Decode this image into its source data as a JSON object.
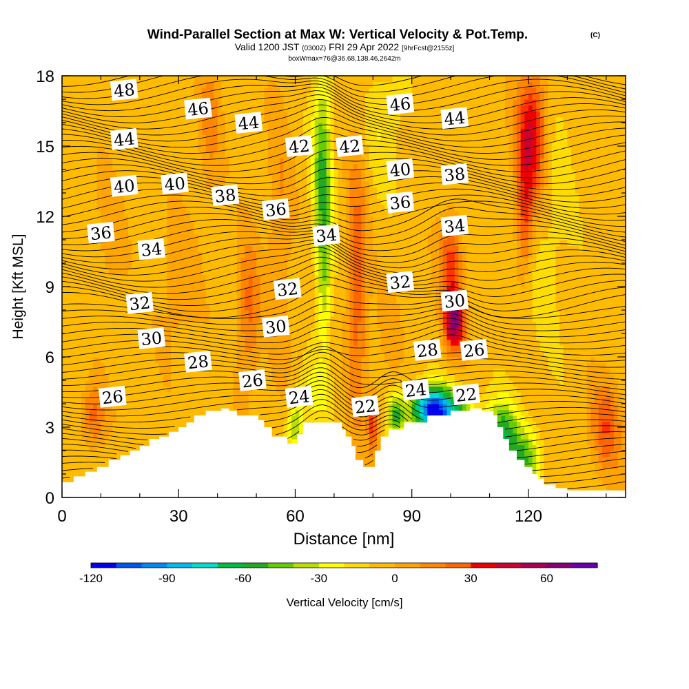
{
  "chart_data": {
    "type": "heatmap",
    "title": "Wind-Parallel Section at Max W: Vertical Velocity & Pot.Temp.",
    "title_mark": "(C)",
    "subtitle": {
      "valid_prefix": "Valid 1200 JST",
      "utc": "(0300Z)",
      "date": "FRI 29 Apr 2022",
      "forecast": "[9hrFcst@2155z]"
    },
    "subtitle2": "boxWmax=76@36.68,138.46,2642m",
    "xlabel": "Distance [nm]",
    "ylabel": "Height [Kft MSL]",
    "xlim": [
      0,
      145
    ],
    "ylim": [
      0,
      18
    ],
    "x_ticks": [
      "0",
      "30",
      "60",
      "90",
      "120"
    ],
    "x_tick_values": [
      0,
      30,
      60,
      90,
      120
    ],
    "y_ticks": [
      "0",
      "3",
      "6",
      "9",
      "12",
      "15",
      "18"
    ],
    "y_tick_values": [
      0,
      3,
      6,
      9,
      12,
      15,
      18
    ],
    "colorbar": {
      "label": "Vertical Velocity [cm/s]",
      "range": [
        -120,
        80
      ],
      "step": 10,
      "tick_labels": [
        "-120",
        "-90",
        "-60",
        "-30",
        "0",
        "30",
        "60"
      ],
      "tick_values": [
        -120,
        -90,
        -60,
        -30,
        0,
        30,
        60
      ],
      "colors": [
        "#0000ee",
        "#0055ee",
        "#0088ee",
        "#00bbee",
        "#00ddcc",
        "#00cc88",
        "#00bb44",
        "#22aa22",
        "#66cc00",
        "#bbdd00",
        "#ffff00",
        "#ffdd00",
        "#ffbb00",
        "#ffa500",
        "#ff8800",
        "#ff6600",
        "#ff3300",
        "#ee0000",
        "#cc0033",
        "#aa0055",
        "#880077",
        "#6600aa"
      ]
    },
    "theta_labels": [
      {
        "text": "48",
        "x": 16,
        "y": 17.4
      },
      {
        "text": "46",
        "x": 35,
        "y": 16.6
      },
      {
        "text": "44",
        "x": 48,
        "y": 16.0
      },
      {
        "text": "42",
        "x": 61,
        "y": 15.0
      },
      {
        "text": "42",
        "x": 74,
        "y": 15.0
      },
      {
        "text": "46",
        "x": 87,
        "y": 16.8
      },
      {
        "text": "44",
        "x": 101,
        "y": 16.2
      },
      {
        "text": "44",
        "x": 16,
        "y": 15.3
      },
      {
        "text": "40",
        "x": 16,
        "y": 13.3
      },
      {
        "text": "40",
        "x": 29,
        "y": 13.4
      },
      {
        "text": "38",
        "x": 42,
        "y": 12.9
      },
      {
        "text": "36",
        "x": 55,
        "y": 12.3
      },
      {
        "text": "40",
        "x": 87,
        "y": 14.0
      },
      {
        "text": "38",
        "x": 101,
        "y": 13.8
      },
      {
        "text": "36",
        "x": 87,
        "y": 12.6
      },
      {
        "text": "34",
        "x": 101,
        "y": 11.6
      },
      {
        "text": "36",
        "x": 10,
        "y": 11.3
      },
      {
        "text": "34",
        "x": 23,
        "y": 10.6
      },
      {
        "text": "34",
        "x": 68,
        "y": 11.2
      },
      {
        "text": "32",
        "x": 58,
        "y": 8.9
      },
      {
        "text": "32",
        "x": 87,
        "y": 9.2
      },
      {
        "text": "30",
        "x": 101,
        "y": 8.4
      },
      {
        "text": "32",
        "x": 20,
        "y": 8.3
      },
      {
        "text": "30",
        "x": 23,
        "y": 6.8
      },
      {
        "text": "30",
        "x": 55,
        "y": 7.3
      },
      {
        "text": "28",
        "x": 35,
        "y": 5.8
      },
      {
        "text": "28",
        "x": 94,
        "y": 6.3
      },
      {
        "text": "26",
        "x": 106,
        "y": 6.3
      },
      {
        "text": "26",
        "x": 49,
        "y": 5.0
      },
      {
        "text": "26",
        "x": 13,
        "y": 4.3
      },
      {
        "text": "24",
        "x": 61,
        "y": 4.3
      },
      {
        "text": "22",
        "x": 78,
        "y": 3.9
      },
      {
        "text": "24",
        "x": 91,
        "y": 4.6
      },
      {
        "text": "22",
        "x": 104,
        "y": 4.4
      }
    ]
  }
}
